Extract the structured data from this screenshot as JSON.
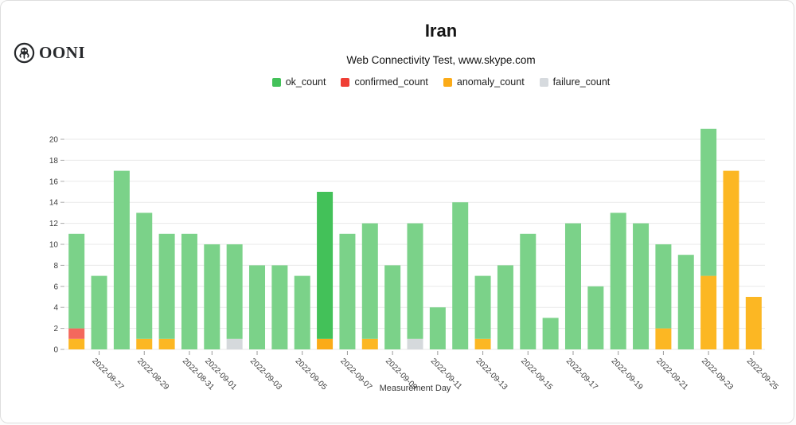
{
  "header": {
    "logo_text": "OONI",
    "title": "Iran",
    "subtitle": "Web Connectivity Test, www.skype.com"
  },
  "legend": [
    {
      "label": "ok_count",
      "color": "#43c159"
    },
    {
      "label": "confirmed_count",
      "color": "#ef3e35"
    },
    {
      "label": "anomaly_count",
      "color": "#fbab18"
    },
    {
      "label": "failure_count",
      "color": "#d6dade"
    }
  ],
  "chart_data": {
    "type": "bar",
    "stacked": true,
    "title": "Iran",
    "subtitle": "Web Connectivity Test, www.skype.com",
    "xlabel": "Measurement Day",
    "ylabel": "",
    "ylim": [
      0,
      21
    ],
    "ytick_step": 2,
    "grid": true,
    "legend_position": "top",
    "x": [
      "2022-08-26",
      "2022-08-27",
      "2022-08-28",
      "2022-08-29",
      "2022-08-30",
      "2022-08-31",
      "2022-09-01",
      "2022-09-02",
      "2022-09-03",
      "2022-09-04",
      "2022-09-05",
      "2022-09-06",
      "2022-09-07",
      "2022-09-08",
      "2022-09-09",
      "2022-09-10",
      "2022-09-11",
      "2022-09-12",
      "2022-09-13",
      "2022-09-14",
      "2022-09-15",
      "2022-09-16",
      "2022-09-17",
      "2022-09-18",
      "2022-09-19",
      "2022-09-20",
      "2022-09-21",
      "2022-09-22",
      "2022-09-23",
      "2022-09-24",
      "2022-09-25"
    ],
    "labeled_ticks": [
      "2022-08-27",
      "2022-08-29",
      "2022-08-31",
      "2022-09-01",
      "2022-09-03",
      "2022-09-05",
      "2022-09-07",
      "2022-09-09",
      "2022-09-11",
      "2022-09-13",
      "2022-09-15",
      "2022-09-17",
      "2022-09-19",
      "2022-09-21",
      "2022-09-23",
      "2022-09-25"
    ],
    "stack_order": [
      "anomaly_count",
      "confirmed_count",
      "failure_count",
      "ok_count"
    ],
    "series": [
      {
        "name": "ok_count",
        "values": [
          9,
          7,
          17,
          12,
          10,
          11,
          10,
          9,
          8,
          8,
          7,
          14,
          11,
          11,
          8,
          11,
          4,
          14,
          6,
          8,
          11,
          3,
          12,
          6,
          13,
          12,
          8,
          9,
          14,
          0,
          0
        ]
      },
      {
        "name": "confirmed_count",
        "values": [
          1,
          0,
          0,
          0,
          0,
          0,
          0,
          0,
          0,
          0,
          0,
          0,
          0,
          0,
          0,
          0,
          0,
          0,
          0,
          0,
          0,
          0,
          0,
          0,
          0,
          0,
          0,
          0,
          0,
          0,
          0
        ]
      },
      {
        "name": "anomaly_count",
        "values": [
          1,
          0,
          0,
          1,
          1,
          0,
          0,
          0,
          0,
          0,
          0,
          1,
          0,
          1,
          0,
          0,
          0,
          0,
          1,
          0,
          0,
          0,
          0,
          0,
          0,
          0,
          2,
          0,
          7,
          17,
          5
        ]
      },
      {
        "name": "failure_count",
        "values": [
          0,
          0,
          0,
          0,
          0,
          0,
          0,
          1,
          0,
          0,
          0,
          0,
          0,
          0,
          0,
          1,
          0,
          0,
          0,
          0,
          0,
          0,
          0,
          0,
          0,
          0,
          0,
          0,
          0,
          0,
          0
        ]
      }
    ],
    "bar_colors": {
      "ok_count": "#7bd289",
      "confirmed_count": "#f4685d",
      "anomaly_count": "#fcb723",
      "failure_count": "#d5d9dc"
    },
    "highlight_index": 11,
    "highlight_date": "2022-09-06"
  }
}
